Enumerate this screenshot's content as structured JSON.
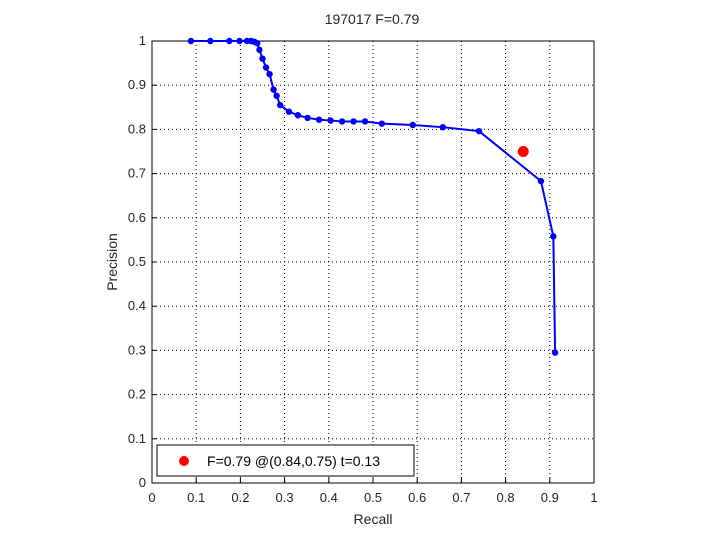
{
  "chart_data": {
    "type": "line",
    "title": "197017 F=0.79",
    "xlabel": "Recall",
    "ylabel": "Precision",
    "xlim": [
      0,
      1
    ],
    "ylim": [
      0,
      1
    ],
    "x_ticks": [
      "0",
      "0.1",
      "0.2",
      "0.3",
      "0.4",
      "0.5",
      "0.6",
      "0.7",
      "0.8",
      "0.9",
      "1"
    ],
    "y_ticks": [
      "0",
      "0.1",
      "0.2",
      "0.3",
      "0.4",
      "0.5",
      "0.6",
      "0.7",
      "0.8",
      "0.9",
      "1"
    ],
    "grid": true,
    "legend_position": "bottom-left",
    "series": [
      {
        "color": "#0000ff",
        "marker": "dot",
        "points": [
          [
            0.088,
            1.0
          ],
          [
            0.132,
            1.0
          ],
          [
            0.175,
            1.0
          ],
          [
            0.198,
            1.0
          ],
          [
            0.215,
            1.0
          ],
          [
            0.224,
            1.0
          ],
          [
            0.232,
            0.998
          ],
          [
            0.238,
            0.995
          ],
          [
            0.243,
            0.98
          ],
          [
            0.25,
            0.96
          ],
          [
            0.258,
            0.94
          ],
          [
            0.266,
            0.925
          ],
          [
            0.275,
            0.89
          ],
          [
            0.282,
            0.876
          ],
          [
            0.29,
            0.855
          ],
          [
            0.31,
            0.84
          ],
          [
            0.33,
            0.832
          ],
          [
            0.352,
            0.826
          ],
          [
            0.378,
            0.822
          ],
          [
            0.404,
            0.82
          ],
          [
            0.43,
            0.818
          ],
          [
            0.456,
            0.818
          ],
          [
            0.482,
            0.818
          ],
          [
            0.52,
            0.813
          ],
          [
            0.59,
            0.81
          ],
          [
            0.658,
            0.805
          ],
          [
            0.74,
            0.796
          ],
          [
            0.88,
            0.683
          ],
          [
            0.908,
            0.558
          ],
          [
            0.912,
            0.295
          ]
        ]
      }
    ],
    "best_point": {
      "recall": 0.84,
      "precision": 0.75,
      "color": "#ff0000"
    },
    "legend_label": "F=0.79 @(0.84,0.75) t=0.13"
  }
}
